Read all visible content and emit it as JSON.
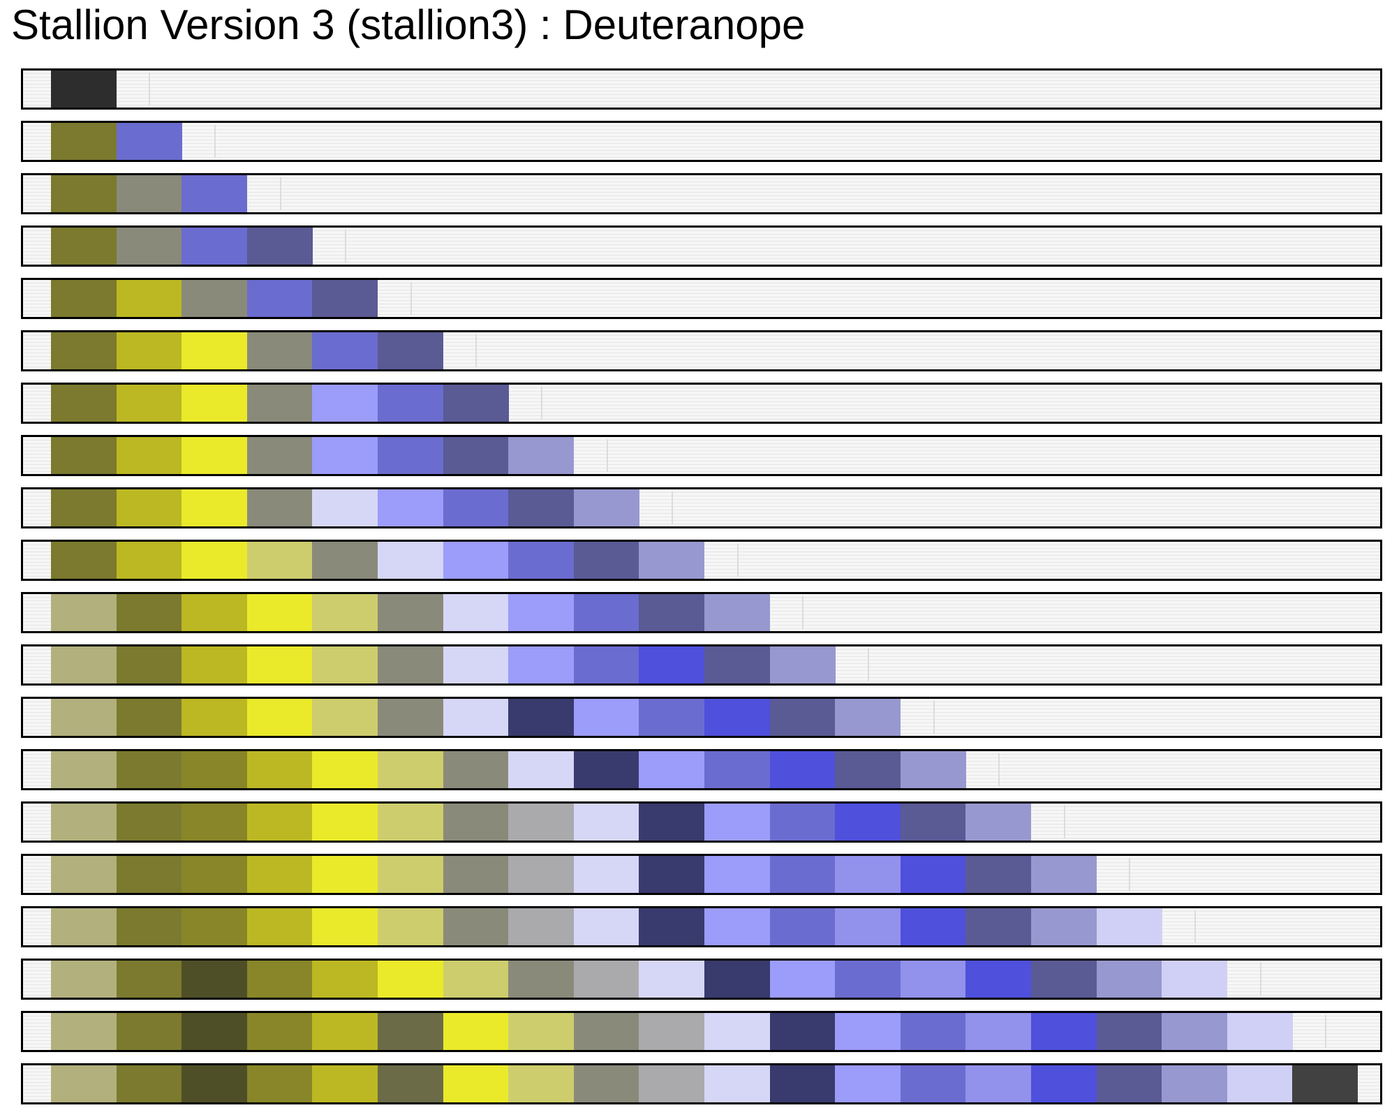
{
  "title": "Stallion Version 3 (stallion3) : Deuteranope",
  "palettes": [
    [
      "#2d2d2d"
    ],
    [
      "#7b7a2e",
      "#6b6ccf"
    ],
    [
      "#7b7a2e",
      "#8a8a7a",
      "#6b6ccf"
    ],
    [
      "#7b7a2e",
      "#8a8a7a",
      "#6b6ccf",
      "#5a5a95"
    ],
    [
      "#7b7a2e",
      "#bcb823",
      "#8a8a7a",
      "#6b6ccf",
      "#5a5a95"
    ],
    [
      "#7b7a2e",
      "#bcb823",
      "#eaea2b",
      "#8a8a7a",
      "#6b6ccf",
      "#5a5a95"
    ],
    [
      "#7b7a2e",
      "#bcb823",
      "#eaea2b",
      "#8a8a7a",
      "#9c9cfa",
      "#6b6ccf",
      "#5a5a95"
    ],
    [
      "#7b7a2e",
      "#bcb823",
      "#eaea2b",
      "#8a8a7a",
      "#9c9cfa",
      "#6b6ccf",
      "#5a5a95",
      "#9898d0"
    ],
    [
      "#7b7a2e",
      "#bcb823",
      "#eaea2b",
      "#8a8a7a",
      "#d6d6f6",
      "#9c9cfa",
      "#6b6ccf",
      "#5a5a95",
      "#9898d0"
    ],
    [
      "#7b7a2e",
      "#bcb823",
      "#eaea2b",
      "#cdcd6d",
      "#8a8a7a",
      "#d6d6f6",
      "#9c9cfa",
      "#6b6ccf",
      "#5a5a95",
      "#9898d0"
    ],
    [
      "#b2b07c",
      "#7b7a2e",
      "#bcb823",
      "#eaea2b",
      "#cdcd6d",
      "#8a8a7a",
      "#d6d6f6",
      "#9c9cfa",
      "#6b6ccf",
      "#5a5a95",
      "#9898d0"
    ],
    [
      "#b2b07c",
      "#7b7a2e",
      "#bcb823",
      "#eaea2b",
      "#cdcd6d",
      "#8a8a7a",
      "#d6d6f6",
      "#9c9cfa",
      "#6b6ccf",
      "#4f50dc",
      "#5a5a95",
      "#9898d0"
    ],
    [
      "#b2b07c",
      "#7b7a2e",
      "#bcb823",
      "#eaea2b",
      "#cdcd6d",
      "#8a8a7a",
      "#d6d6f6",
      "#393a6d",
      "#9c9cfa",
      "#6b6ccf",
      "#4f50dc",
      "#5a5a95",
      "#9898d0"
    ],
    [
      "#b2b07c",
      "#7b7a2e",
      "#888628",
      "#bcb823",
      "#eaea2b",
      "#cdcd6d",
      "#8a8a7a",
      "#d6d6f6",
      "#393a6d",
      "#9c9cfa",
      "#6b6ccf",
      "#4f50dc",
      "#5a5a95",
      "#9898d0"
    ],
    [
      "#b2b07c",
      "#7b7a2e",
      "#888628",
      "#bcb823",
      "#eaea2b",
      "#cdcd6d",
      "#8a8a7a",
      "#aaaaad",
      "#d6d6f6",
      "#393a6d",
      "#9c9cfa",
      "#6b6ccf",
      "#4f50dc",
      "#5a5a95",
      "#9898d0"
    ],
    [
      "#b2b07c",
      "#7b7a2e",
      "#888628",
      "#bcb823",
      "#eaea2b",
      "#cdcd6d",
      "#8a8a7a",
      "#aaaaad",
      "#d6d6f6",
      "#393a6d",
      "#9c9cfa",
      "#6b6ccf",
      "#9292ec",
      "#4f50dc",
      "#5a5a95",
      "#9898d0"
    ],
    [
      "#b2b07c",
      "#7b7a2e",
      "#888628",
      "#bcb823",
      "#eaea2b",
      "#cdcd6d",
      "#8a8a7a",
      "#aaaaad",
      "#d6d6f6",
      "#393a6d",
      "#9c9cfa",
      "#6b6ccf",
      "#9292ec",
      "#4f50dc",
      "#5a5a95",
      "#9898d0",
      "#d0d0f6"
    ],
    [
      "#b2b07c",
      "#7b7a2e",
      "#4f4f27",
      "#888628",
      "#bcb823",
      "#eaea2b",
      "#cdcd6d",
      "#8a8a7a",
      "#aaaaad",
      "#d6d6f6",
      "#393a6d",
      "#9c9cfa",
      "#6b6ccf",
      "#9292ec",
      "#4f50dc",
      "#5a5a95",
      "#9898d0",
      "#d0d0f6"
    ],
    [
      "#b2b07c",
      "#7b7a2e",
      "#4f4f27",
      "#888628",
      "#bcb823",
      "#6b6b48",
      "#eaea2b",
      "#cdcd6d",
      "#8a8a7a",
      "#aaaaad",
      "#d6d6f6",
      "#393a6d",
      "#9c9cfa",
      "#6b6ccf",
      "#9292ec",
      "#4f50dc",
      "#5a5a95",
      "#9898d0",
      "#d0d0f6"
    ],
    [
      "#b2b07c",
      "#7b7a2e",
      "#4f4f27",
      "#888628",
      "#bcb823",
      "#6b6b48",
      "#eaea2b",
      "#cdcd6d",
      "#8a8a7a",
      "#aaaaad",
      "#d6d6f6",
      "#393a6d",
      "#9c9cfa",
      "#6b6ccf",
      "#9292ec",
      "#4f50dc",
      "#5a5a95",
      "#9898d0",
      "#d0d0f6",
      "#414141"
    ]
  ]
}
